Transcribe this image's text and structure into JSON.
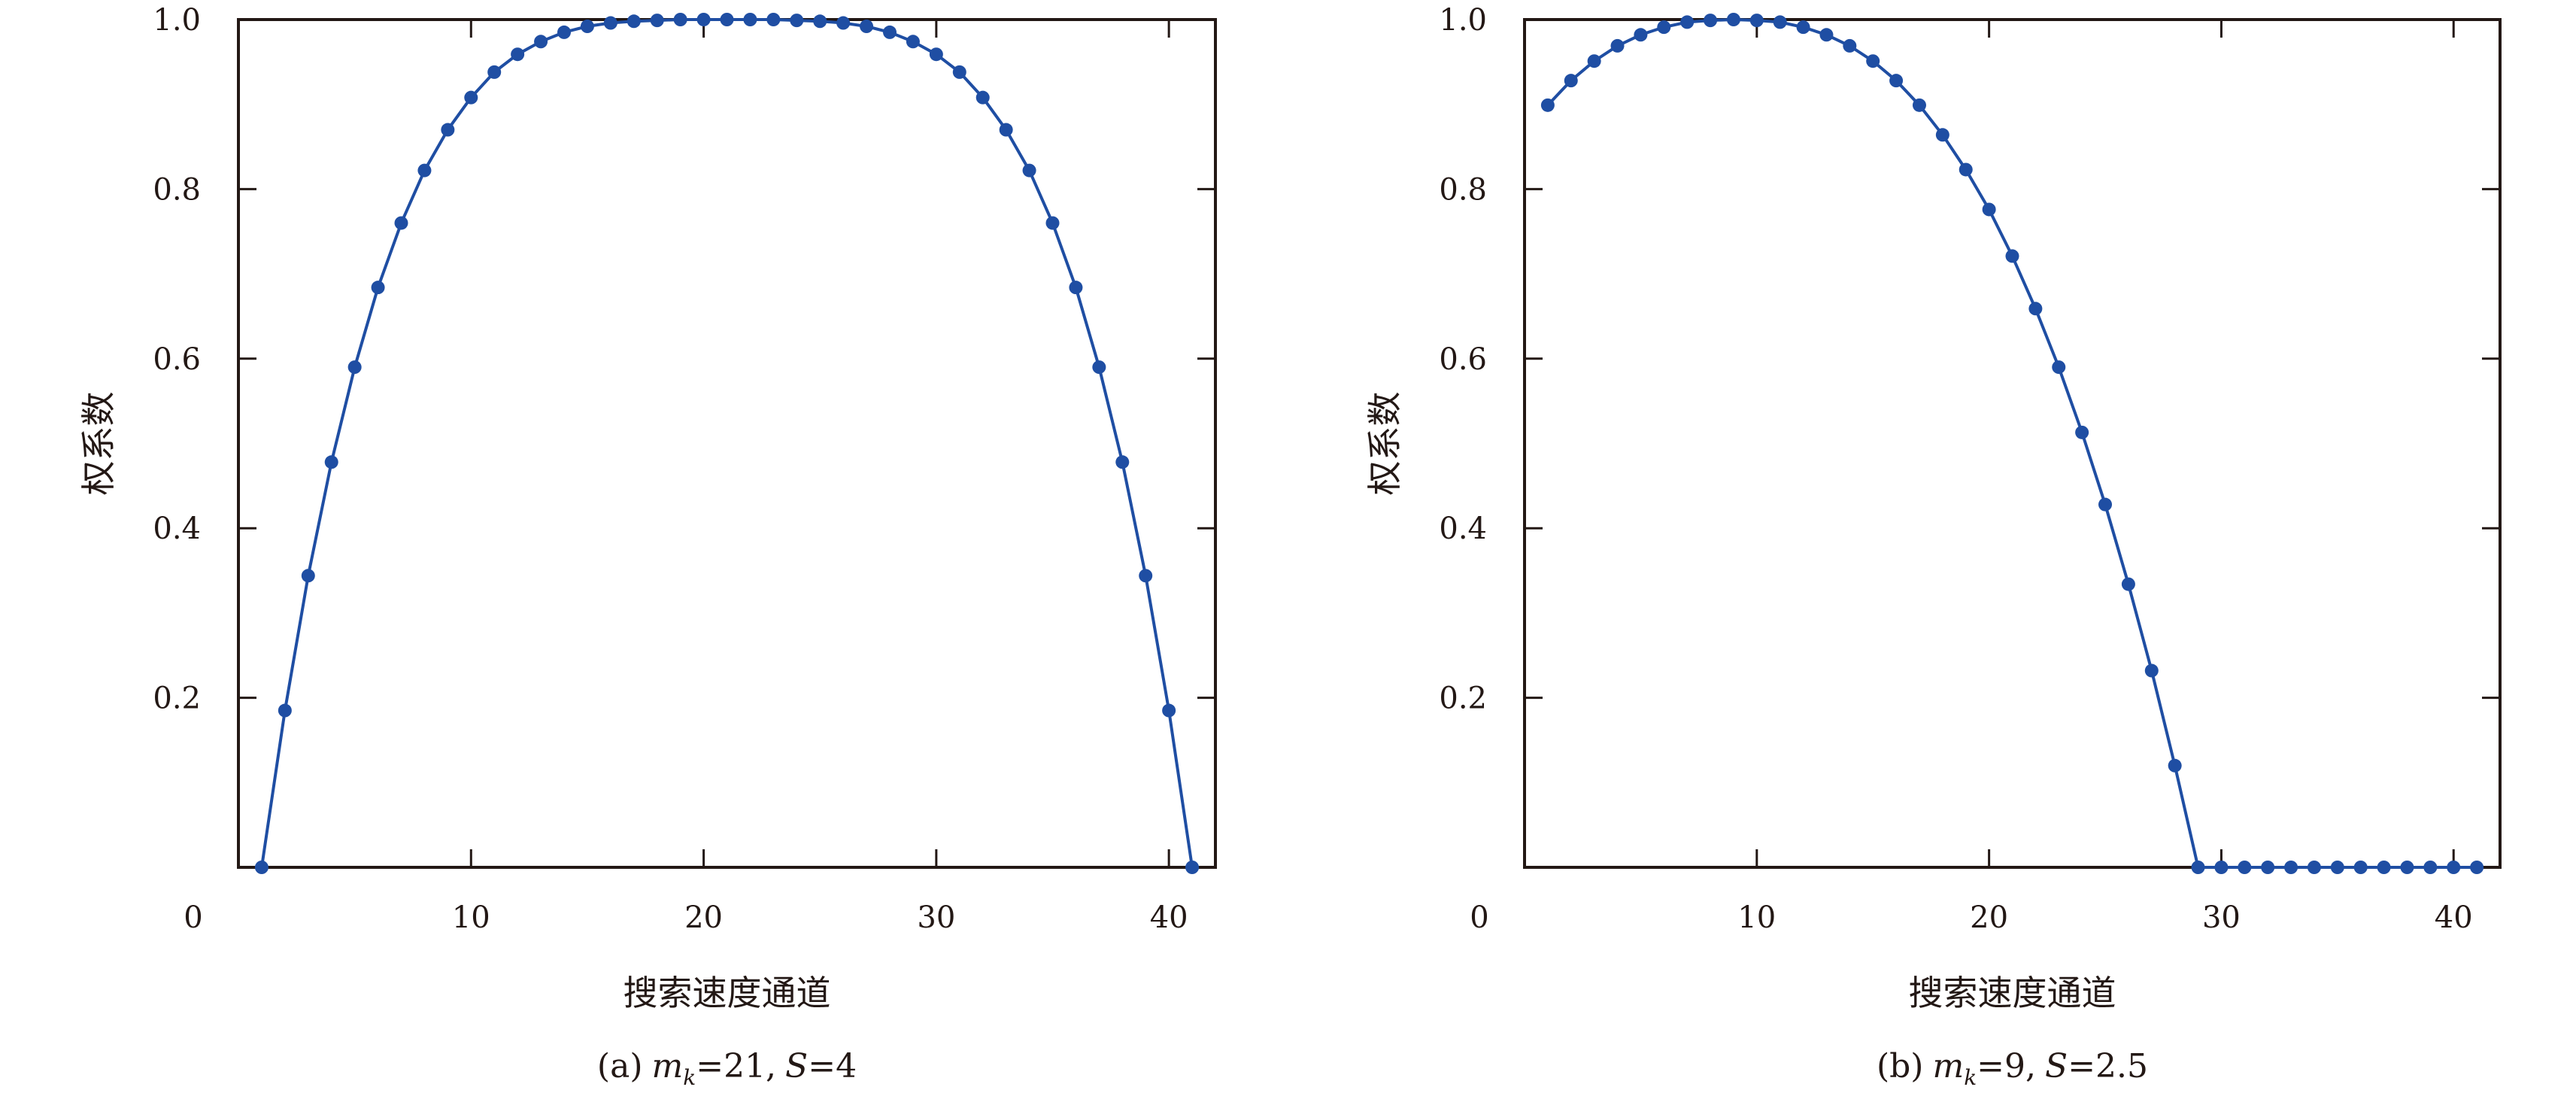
{
  "chart_data": [
    {
      "type": "line",
      "panel": "a",
      "xlabel": "搜索速度通道",
      "ylabel": "权系数",
      "xlim": [
        0,
        42
      ],
      "ylim": [
        0,
        1.0
      ],
      "xticks": [
        "10",
        "20",
        "30",
        "40"
      ],
      "yticks": [
        "0.2",
        "0.4",
        "0.6",
        "0.8",
        "1.0"
      ],
      "origin_label": "0",
      "grid": false,
      "color": "#1f4ea3",
      "markers": "filled-circle",
      "caption": {
        "prefix": "(a)",
        "var1": "m",
        "sub": "k",
        "val1": "=21,",
        "var2": "S",
        "val2": "=4"
      },
      "x": [
        1,
        2,
        3,
        4,
        5,
        6,
        7,
        8,
        9,
        10,
        11,
        12,
        13,
        14,
        15,
        16,
        17,
        18,
        19,
        20,
        21,
        22,
        23,
        24,
        25,
        26,
        27,
        28,
        29,
        30,
        31,
        32,
        33,
        34,
        35,
        36,
        37,
        38,
        39,
        40,
        41
      ],
      "y": [
        0,
        0.185,
        0.344,
        0.478,
        0.59,
        0.684,
        0.76,
        0.822,
        0.87,
        0.908,
        0.938,
        0.959,
        0.974,
        0.985,
        0.992,
        0.996,
        0.998,
        0.999,
        1.0,
        1.0,
        1.0,
        1.0,
        1.0,
        0.999,
        0.998,
        0.996,
        0.992,
        0.985,
        0.974,
        0.959,
        0.938,
        0.908,
        0.87,
        0.822,
        0.76,
        0.684,
        0.59,
        0.478,
        0.344,
        0.185,
        0
      ]
    },
    {
      "type": "line",
      "panel": "b",
      "xlabel": "搜索速度通道",
      "ylabel": "权系数",
      "xlim": [
        0,
        42
      ],
      "ylim": [
        0,
        1.0
      ],
      "xticks": [
        "10",
        "20",
        "30",
        "40"
      ],
      "yticks": [
        "0.2",
        "0.4",
        "0.6",
        "0.8",
        "1.0"
      ],
      "origin_label": "0",
      "grid": false,
      "color": "#1f4ea3",
      "markers": "filled-circle",
      "caption": {
        "prefix": "(b)",
        "var1": "m",
        "sub": "k",
        "val1": "=9,",
        "var2": "S",
        "val2": "=2.5"
      },
      "x": [
        1,
        2,
        3,
        4,
        5,
        6,
        7,
        8,
        9,
        10,
        11,
        12,
        13,
        14,
        15,
        16,
        17,
        18,
        19,
        20,
        21,
        22,
        23,
        24,
        25,
        26,
        27,
        28,
        29,
        30,
        31,
        32,
        33,
        34,
        35,
        36,
        37,
        38,
        39,
        40,
        41
      ],
      "y": [
        0.899,
        0.928,
        0.951,
        0.969,
        0.982,
        0.991,
        0.997,
        0.999,
        1.0,
        0.999,
        0.997,
        0.991,
        0.982,
        0.969,
        0.951,
        0.928,
        0.899,
        0.864,
        0.823,
        0.776,
        0.721,
        0.659,
        0.59,
        0.513,
        0.428,
        0.334,
        0.232,
        0.12,
        0,
        0,
        0,
        0,
        0,
        0,
        0,
        0,
        0,
        0,
        0,
        0,
        0
      ]
    }
  ]
}
